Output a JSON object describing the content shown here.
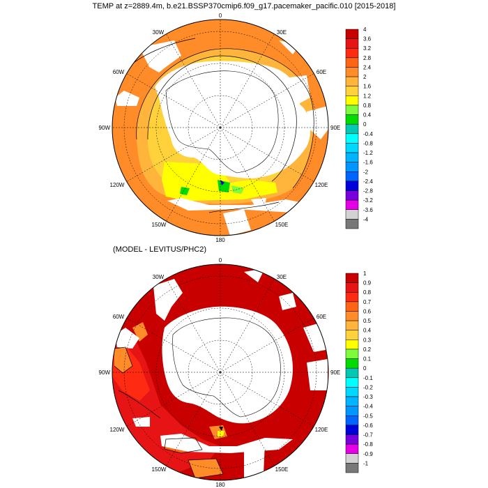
{
  "title": "TEMP at z=2889.4m, b.e21.BSSP370cmip6.f09_g17.pacemaker_pacific.010 [2015-2018]",
  "subtitle": "(MODEL - LEVITUS/PHC2)",
  "maps": [
    {
      "id": "top",
      "longitude_labels": [
        "0",
        "30E",
        "60E",
        "90E",
        "120E",
        "150E",
        "180",
        "150W",
        "120W",
        "90W",
        "60W",
        "30W"
      ],
      "colorbar": {
        "labels": [
          "4",
          "3.6",
          "3.2",
          "2.8",
          "2.4",
          "2",
          "1.6",
          "1.2",
          "0.8",
          "0.4",
          "0",
          "-0.4",
          "-0.8",
          "-1.2",
          "-1.6",
          "-2",
          "-2.4",
          "-2.8",
          "-3.2",
          "-3.6",
          "-4"
        ],
        "colors": [
          "#c80000",
          "#e61414",
          "#ff2a12",
          "#ff6414",
          "#ff8c28",
          "#ffb43c",
          "#ffd23c",
          "#ffff00",
          "#7cfc3c",
          "#00dc00",
          "#00c8b4",
          "#00ffff",
          "#00d8ff",
          "#00b4ff",
          "#0096ff",
          "#0064ff",
          "#0000dc",
          "#7800dc",
          "#e600e6",
          "#d2d2d2",
          "#787878"
        ]
      }
    },
    {
      "id": "bottom",
      "longitude_labels": [
        "0",
        "30E",
        "60E",
        "90E",
        "120E",
        "150E",
        "180",
        "150W",
        "120W",
        "90W",
        "60W",
        "30W"
      ],
      "colorbar": {
        "labels": [
          "1",
          "0.9",
          "0.8",
          "0.7",
          "0.6",
          "0.5",
          "0.4",
          "0.3",
          "0.2",
          "0.1",
          "0",
          "-0.1",
          "-0.2",
          "-0.3",
          "-0.4",
          "-0.5",
          "-0.6",
          "-0.7",
          "-0.8",
          "-0.9",
          "-1"
        ],
        "colors": [
          "#c80000",
          "#e61414",
          "#ff2a12",
          "#ff6414",
          "#ff8c28",
          "#ffb43c",
          "#ffd23c",
          "#ffff00",
          "#7cfc3c",
          "#00dc00",
          "#00c8b4",
          "#00ffff",
          "#00d8ff",
          "#00b4ff",
          "#0096ff",
          "#0064ff",
          "#0000dc",
          "#7800dc",
          "#e600e6",
          "#d2d2d2",
          "#787878"
        ]
      }
    }
  ]
}
